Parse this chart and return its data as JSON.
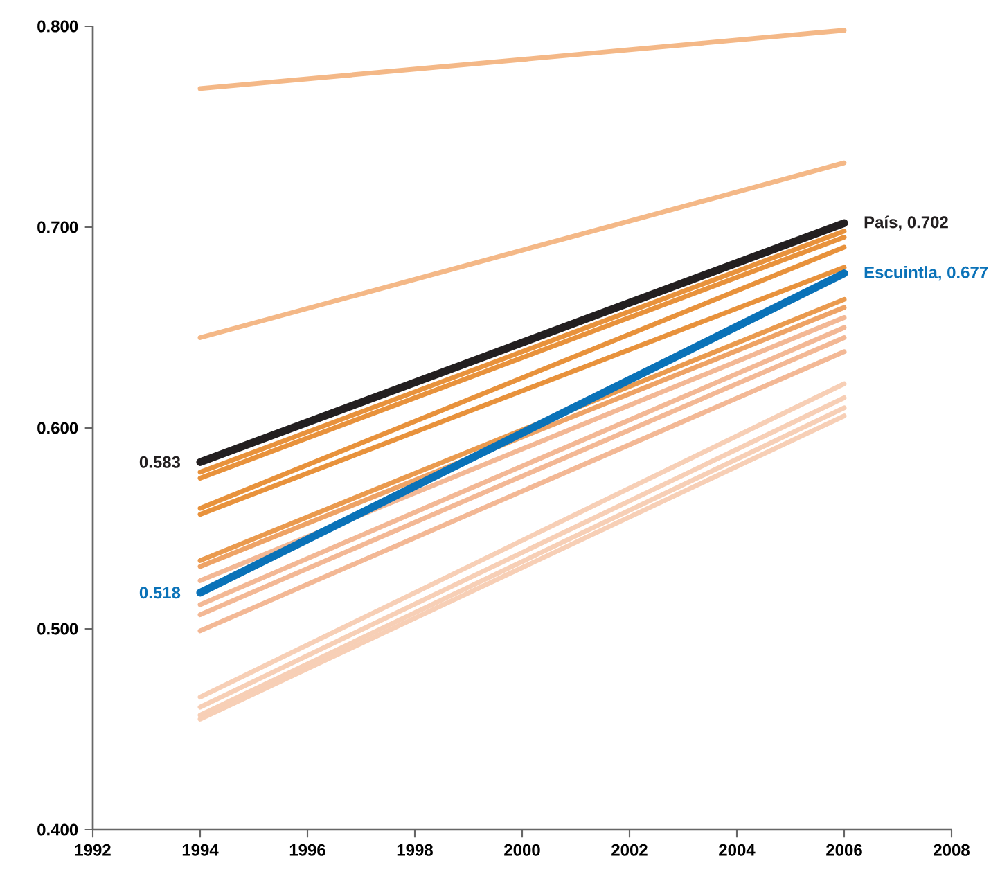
{
  "chart_data": {
    "type": "line",
    "x": [
      1994,
      2006
    ],
    "xlim": [
      1992,
      2008
    ],
    "xticks": [
      1992,
      1994,
      1996,
      1998,
      2000,
      2002,
      2004,
      2006,
      2008
    ],
    "ylim": [
      0.4,
      0.8
    ],
    "yticks": [
      {
        "value": 0.4,
        "label": "0.400"
      },
      {
        "value": 0.5,
        "label": "0.500"
      },
      {
        "value": 0.6,
        "label": "0.600"
      },
      {
        "value": 0.7,
        "label": "0.700"
      },
      {
        "value": 0.8,
        "label": "0.800"
      }
    ],
    "marker": "none",
    "line_style": "solid",
    "series": [
      {
        "color": "#f4b887",
        "values": [
          0.769,
          0.798
        ]
      },
      {
        "color": "#f4b887",
        "values": [
          0.645,
          0.732
        ]
      },
      {
        "color": "#e8923c",
        "values": [
          0.578,
          0.698
        ]
      },
      {
        "color": "#e8923c",
        "values": [
          0.575,
          0.695
        ]
      },
      {
        "color": "#e8923c",
        "values": [
          0.56,
          0.69
        ]
      },
      {
        "color": "#e8923c",
        "values": [
          0.557,
          0.68
        ]
      },
      {
        "color": "#ea9a4e",
        "values": [
          0.534,
          0.664
        ]
      },
      {
        "color": "#eea366",
        "values": [
          0.531,
          0.66
        ]
      },
      {
        "color": "#f3b895",
        "values": [
          0.524,
          0.655
        ]
      },
      {
        "color": "#f3b895",
        "values": [
          0.512,
          0.65
        ]
      },
      {
        "color": "#f3b895",
        "values": [
          0.507,
          0.645
        ]
      },
      {
        "color": "#f3b895",
        "values": [
          0.499,
          0.638
        ]
      },
      {
        "color": "#f7cfb6",
        "values": [
          0.466,
          0.622
        ]
      },
      {
        "color": "#f7cfb6",
        "values": [
          0.461,
          0.615
        ]
      },
      {
        "color": "#f7cfb6",
        "values": [
          0.457,
          0.61
        ]
      },
      {
        "color": "#f7cfb6",
        "values": [
          0.455,
          0.606
        ]
      },
      {
        "color": "#0a72b8",
        "values": [
          0.518,
          0.677
        ],
        "value_labels": [
          "0.518",
          "Escuintla, 0.677"
        ]
      },
      {
        "color": "#231f20",
        "values": [
          0.583,
          0.702
        ],
        "value_labels": [
          "0.583",
          "País, 0.702"
        ]
      }
    ]
  }
}
